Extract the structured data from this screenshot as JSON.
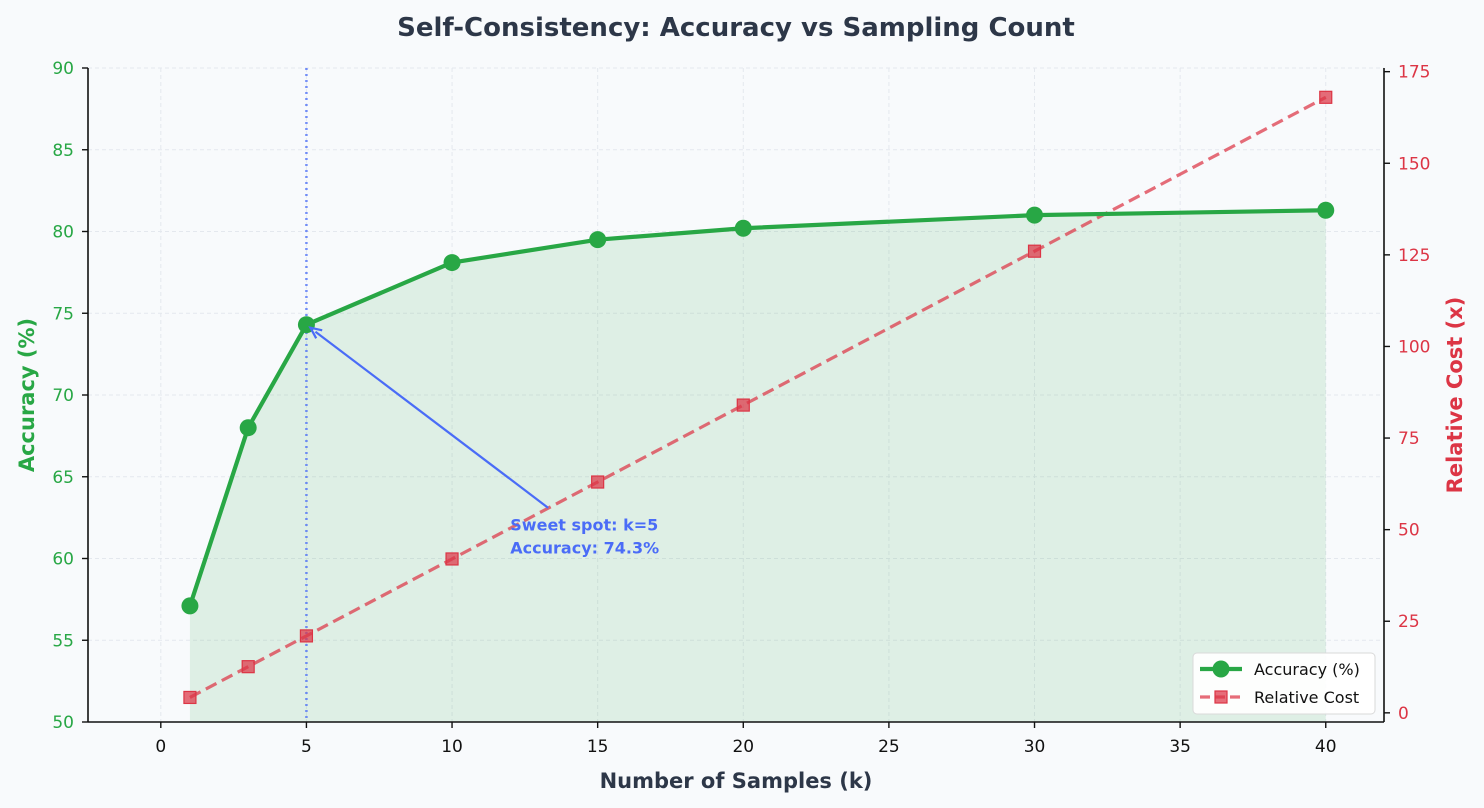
{
  "chart_data": {
    "type": "line",
    "title": "Self-Consistency: Accuracy vs Sampling Count",
    "xlabel": "Number of Samples (k)",
    "ylabel": "Accuracy (%)",
    "y2label": "Relative Cost (x)",
    "xlim": [
      -2.5,
      42.0
    ],
    "ylim": [
      50,
      90
    ],
    "y2lim": [
      -2.5,
      176.0
    ],
    "x_ticks": [
      "0",
      "5",
      "10",
      "15",
      "20",
      "25",
      "30",
      "35",
      "40"
    ],
    "y_ticks": [
      "50",
      "55",
      "60",
      "65",
      "70",
      "75",
      "80",
      "85",
      "90"
    ],
    "y2_ticks": [
      "0",
      "25",
      "50",
      "75",
      "100",
      "125",
      "150",
      "175"
    ],
    "grid": true,
    "legend_position": "bottom-right",
    "series": [
      {
        "name": "Accuracy (%)",
        "axis": "left",
        "x": [
          1,
          3,
          5,
          10,
          15,
          20,
          30,
          40
        ],
        "values": [
          57.1,
          68.0,
          74.3,
          78.1,
          79.5,
          80.2,
          81.0,
          81.3
        ],
        "color": "#28a745",
        "style": "solid",
        "marker": "circle",
        "fill_below": true
      },
      {
        "name": "Relative Cost",
        "axis": "right",
        "x": [
          1,
          3,
          5,
          10,
          15,
          20,
          30,
          40
        ],
        "values": [
          4.2,
          12.6,
          21.0,
          42.0,
          63.0,
          84.0,
          126.0,
          168.0
        ],
        "color": "#dc3545",
        "style": "dashed",
        "marker": "square"
      }
    ],
    "annotation": {
      "lines": [
        "Sweet spot: k=5",
        "Accuracy: 74.3%"
      ],
      "point_x": 5,
      "point_y": 74.3,
      "text_x": 12,
      "text_y": 61.7,
      "color": "#4a6cf7"
    },
    "vline_x": 5,
    "colors": {
      "accuracy": "#28a745",
      "cost": "#dc3545",
      "annotation": "#4a6cf7",
      "title": "#2d3748"
    }
  }
}
